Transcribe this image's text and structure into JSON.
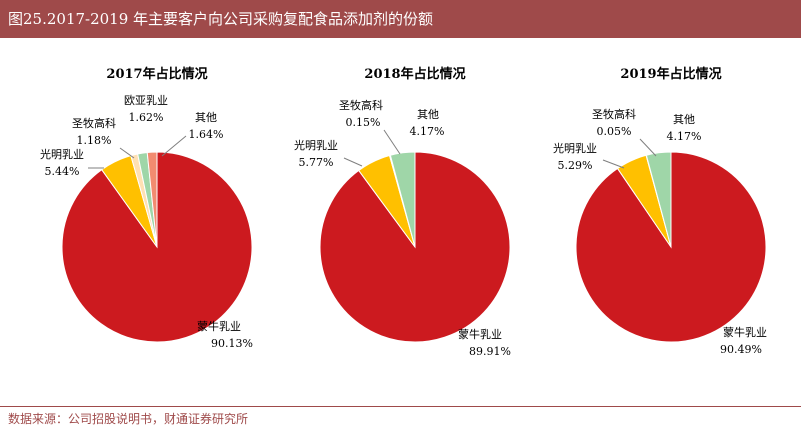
{
  "header": {
    "title": "图25.2017-2019 年主要客户向公司采购复配食品添加剂的份额"
  },
  "footer": {
    "source": "数据来源：公司招股说明书，财通证券研究所"
  },
  "chart_data": [
    {
      "type": "pie",
      "title": "2017年占比情况",
      "categories": [
        "蒙牛乳业",
        "光明乳业",
        "圣牧高科",
        "欧亚乳业",
        "其他"
      ],
      "values": [
        90.13,
        5.44,
        1.18,
        1.62,
        1.64
      ],
      "value_labels": [
        "90.13%",
        "5.44%",
        "1.18%",
        "1.62%",
        "1.64%"
      ],
      "colors": [
        "#cc1a1f",
        "#ffc000",
        "#ffe0b3",
        "#9fd6a8",
        "#f28b70"
      ]
    },
    {
      "type": "pie",
      "title": "2018年占比情况",
      "categories": [
        "蒙牛乳业",
        "光明乳业",
        "圣牧高科",
        "其他"
      ],
      "values": [
        89.91,
        5.77,
        0.15,
        4.17
      ],
      "value_labels": [
        "89.91%",
        "5.77%",
        "0.15%",
        "4.17%"
      ],
      "colors": [
        "#cc1a1f",
        "#ffc000",
        "#ffe0b3",
        "#9fd6a8"
      ]
    },
    {
      "type": "pie",
      "title": "2019年占比情况",
      "categories": [
        "蒙牛乳业",
        "光明乳业",
        "圣牧高科",
        "其他"
      ],
      "values": [
        90.49,
        5.29,
        0.05,
        4.17
      ],
      "value_labels": [
        "90.49%",
        "5.29%",
        "0.05%",
        "4.17%"
      ],
      "colors": [
        "#cc1a1f",
        "#ffc000",
        "#ffe0b3",
        "#9fd6a8"
      ]
    }
  ]
}
